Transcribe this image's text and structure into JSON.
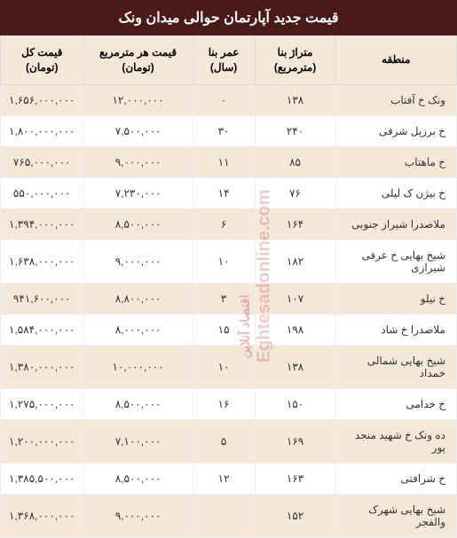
{
  "title": "قیمت جدید آپارتمان حوالی میدان ونک",
  "colors": {
    "header_bg": "#4a1a1a",
    "header_text": "#ffffff",
    "th_bg": "#f5e8d8",
    "odd_row_bg": "#f5e8d8",
    "even_row_bg": "#ffffff",
    "border": "#dddddd",
    "watermark": "rgba(180,60,60,0.3)"
  },
  "columns": [
    {
      "label": "منطقه",
      "key": "region"
    },
    {
      "label": "متراژ بنا (مترمربع)",
      "key": "area"
    },
    {
      "label": "عمر بنا (سال)",
      "key": "age"
    },
    {
      "label": "قیمت هر مترمربع (تومان)",
      "key": "price_per_m"
    },
    {
      "label": "قیمت کل (تومان)",
      "key": "total_price"
    }
  ],
  "rows": [
    {
      "region": "ونک خ آفتاب",
      "area": "۱۳۸",
      "age": "۰",
      "price_per_m": "۱۲,۰۰۰,۰۰۰",
      "total_price": "۱,۶۵۶,۰۰۰,۰۰۰"
    },
    {
      "region": "خ برزیل شرقی",
      "area": "۲۴۰",
      "age": "۳۰",
      "price_per_m": "۷,۵۰۰,۰۰۰",
      "total_price": "۱,۸۰۰,۰۰۰,۰۰۰"
    },
    {
      "region": "خ ماهتاب",
      "area": "۸۵",
      "age": "۱۱",
      "price_per_m": "۹,۰۰۰,۰۰۰",
      "total_price": "۷۶۵,۰۰۰,۰۰۰"
    },
    {
      "region": "خ بیژن ک لیلی",
      "area": "۷۶",
      "age": "۱۴",
      "price_per_m": "۷,۲۳۰,۰۰۰",
      "total_price": "۵۵۰,۰۰۰,۰۰۰"
    },
    {
      "region": "ملاصدرا شیراز جنوبی",
      "area": "۱۶۴",
      "age": "۶",
      "price_per_m": "۸,۵۰۰,۰۰۰",
      "total_price": "۱,۳۹۴,۰۰۰,۰۰۰"
    },
    {
      "region": "شیخ بهایی خ عرفی شیرازی",
      "area": "۱۸۲",
      "age": "۱۰",
      "price_per_m": "۹,۰۰۰,۰۰۰",
      "total_price": "۱,۶۳۸,۰۰۰,۰۰۰"
    },
    {
      "region": "خ نیلو",
      "area": "۱۰۷",
      "age": "۳",
      "price_per_m": "۸,۸۰۰,۰۰۰",
      "total_price": "۹۴۱,۶۰۰,۰۰۰"
    },
    {
      "region": "ملاصدرا خ شاد",
      "area": "۱۹۸",
      "age": "۱۵",
      "price_per_m": "۸,۰۰۰,۰۰۰",
      "total_price": "۱,۵۸۴,۰۰۰,۰۰۰"
    },
    {
      "region": "شیخ بهایی شمالی خمداد",
      "area": "۱۳۸",
      "age": "۱۰",
      "price_per_m": "۱۰,۰۰۰,۰۰۰",
      "total_price": "۱,۳۸۰,۰۰۰,۰۰۰"
    },
    {
      "region": "خ خدامی",
      "area": "۱۵۰",
      "age": "۱۶",
      "price_per_m": "۸,۵۰۰,۰۰۰",
      "total_price": "۱,۲۷۵,۰۰۰,۰۰۰"
    },
    {
      "region": "ده ونک خ شهید منجد پور",
      "area": "۱۶۹",
      "age": "۵",
      "price_per_m": "۷,۱۰۰,۰۰۰",
      "total_price": "۱,۲۰۰,۰۰۰,۰۰۰"
    },
    {
      "region": "خ شرافتی",
      "area": "۱۶۳",
      "age": "۱۲",
      "price_per_m": "۸,۵۰۰,۰۰۰",
      "total_price": "۱,۳۸۵,۵۰۰,۰۰۰"
    },
    {
      "region": "شیخ بهایی شهرک والفجر",
      "area": "۱۵۲",
      "age": "",
      "price_per_m": "۹,۰۰۰,۰۰۰",
      "total_price": "۱,۳۶۸,۰۰۰,۰۰۰"
    }
  ],
  "watermark1": "Eghtesadonline.com",
  "watermark2": "اقتصاد آنلاین"
}
